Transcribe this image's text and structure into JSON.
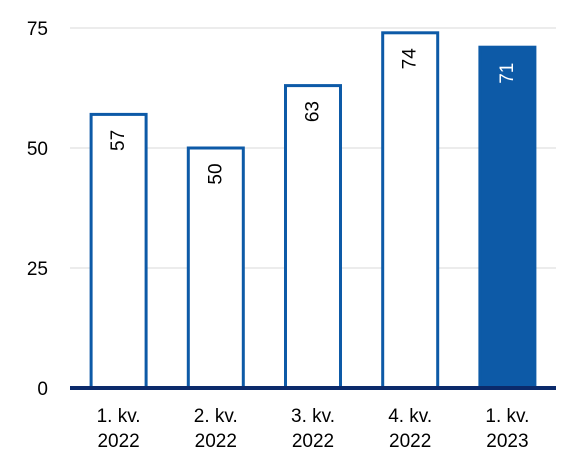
{
  "chart_data": {
    "type": "bar",
    "categories": [
      [
        "1. kv.",
        "2022"
      ],
      [
        "2. kv.",
        "2022"
      ],
      [
        "3. kv.",
        "2022"
      ],
      [
        "4. kv.",
        "2022"
      ],
      [
        "1. kv.",
        "2023"
      ]
    ],
    "values": [
      57,
      50,
      63,
      74,
      71
    ],
    "data_labels": [
      "57",
      "50",
      "63",
      "74",
      "71"
    ],
    "highlight_index": 4,
    "title": "",
    "xlabel": "",
    "ylabel": "",
    "ylim": [
      0,
      75
    ],
    "yticks": [
      0,
      25,
      50,
      75
    ],
    "ytick_labels": [
      "0",
      "25",
      "50",
      "75"
    ],
    "grid": true,
    "legend": "none",
    "colors": {
      "bar_fill": "#ffffff",
      "bar_outline": "#0d5aa7",
      "highlight_fill": "#0d5aa7",
      "highlight_label": "#ffffff",
      "label": "#000000",
      "gridline": "#d9d9d9",
      "baseline": "#0b2a6b"
    }
  }
}
